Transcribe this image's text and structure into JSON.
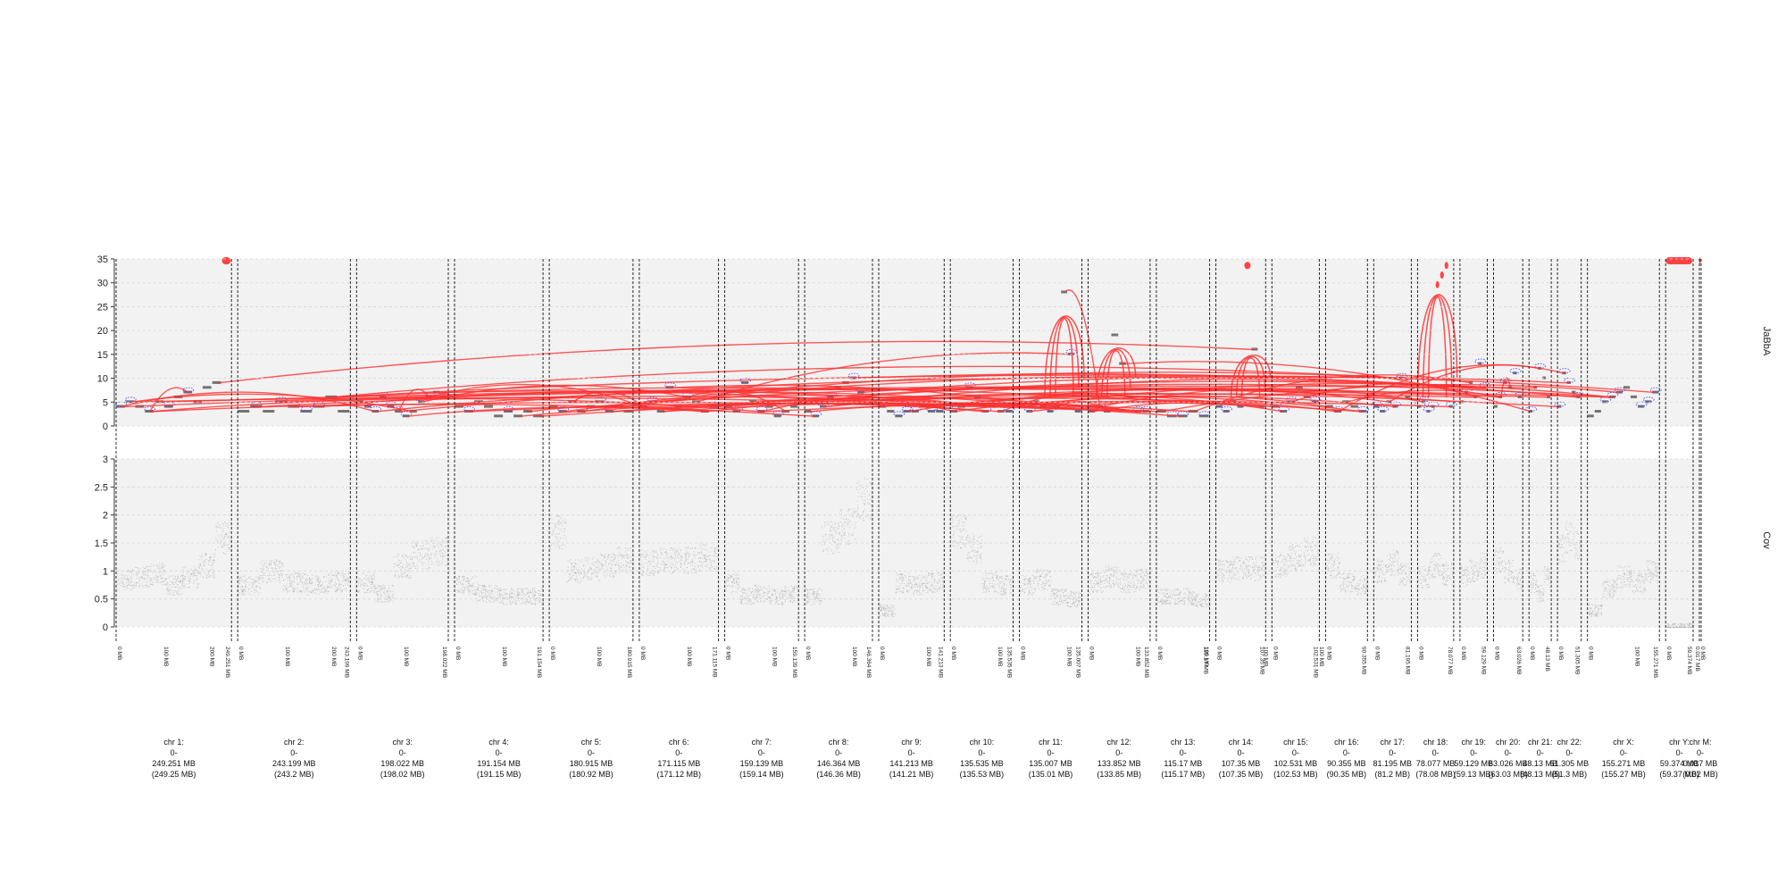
{
  "tracks": [
    {
      "name": "JaBbA",
      "ylim": [
        0,
        35
      ],
      "ticks": [
        "0",
        "5",
        "10",
        "15",
        "20",
        "25",
        "30",
        "35"
      ]
    },
    {
      "name": "Cov",
      "ylim": [
        0,
        3
      ],
      "ticks": [
        "0",
        "0.5",
        "1",
        "1.5",
        "2",
        "2.5",
        "3"
      ]
    }
  ],
  "colors": {
    "edge": "#ff3030",
    "loose": "#3a3aff",
    "segment": "#555555",
    "coverage": "#999999",
    "panel_bg": "#f2f2f2",
    "grid": "#d8d8d8"
  },
  "chart_data": {
    "type": "genome-track",
    "chromosomes": [
      {
        "name": "chr 1:",
        "range": "0-",
        "size": "249.251 MB",
        "size_rounded": "(249.25 MB)",
        "length_mb": 249.251,
        "start_tick": "0 MB",
        "mid_tick": "100 MB",
        "mid2_tick": "200 MB",
        "end_tick": "249.251 MB"
      },
      {
        "name": "chr 2:",
        "range": "0-",
        "size": "243.199 MB",
        "size_rounded": "(243.2 MB)",
        "length_mb": 243.199,
        "start_tick": "0 MB",
        "mid_tick": "100 MB",
        "mid2_tick": "200 MB",
        "end_tick": "243.199 MB"
      },
      {
        "name": "chr 3:",
        "range": "0-",
        "size": "198.022 MB",
        "size_rounded": "(198.02 MB)",
        "length_mb": 198.022,
        "start_tick": "0 MB",
        "mid_tick": "100 MB",
        "end_tick": "198.022 MB"
      },
      {
        "name": "chr 4:",
        "range": "0-",
        "size": "191.154 MB",
        "size_rounded": "(191.15 MB)",
        "length_mb": 191.154,
        "start_tick": "0 MB",
        "mid_tick": "100 MB",
        "end_tick": "191.154 MB"
      },
      {
        "name": "chr 5:",
        "range": "0-",
        "size": "180.915 MB",
        "size_rounded": "(180.92 MB)",
        "length_mb": 180.915,
        "start_tick": "0 MB",
        "mid_tick": "100 MB",
        "end_tick": "180.915 MB"
      },
      {
        "name": "chr 6:",
        "range": "0-",
        "size": "171.115 MB",
        "size_rounded": "(171.12 MB)",
        "length_mb": 171.115,
        "start_tick": "0 MB",
        "mid_tick": "100 MB",
        "end_tick": "171.115 MB"
      },
      {
        "name": "chr 7:",
        "range": "0-",
        "size": "159.139 MB",
        "size_rounded": "(159.14 MB)",
        "length_mb": 159.139,
        "start_tick": "0 MB",
        "mid_tick": "100 MB",
        "end_tick": "159.139 MB"
      },
      {
        "name": "chr 8:",
        "range": "0-",
        "size": "146.364 MB",
        "size_rounded": "(146.36 MB)",
        "length_mb": 146.364,
        "start_tick": "0 MB",
        "mid_tick": "100 MB",
        "end_tick": "146.364 MB"
      },
      {
        "name": "chr 9:",
        "range": "0-",
        "size": "141.213 MB",
        "size_rounded": "(141.21 MB)",
        "length_mb": 141.213,
        "start_tick": "0 MB",
        "mid_tick": "100 MB",
        "end_tick": "141.213 MB"
      },
      {
        "name": "chr 10:",
        "range": "0-",
        "size": "135.535 MB",
        "size_rounded": "(135.53 MB)",
        "length_mb": 135.535,
        "start_tick": "0 MB",
        "mid_tick": "100 MB",
        "end_tick": "135.535 MB"
      },
      {
        "name": "chr 11:",
        "range": "0-",
        "size": "135.007 MB",
        "size_rounded": "(135.01 MB)",
        "length_mb": 135.007,
        "start_tick": "0 MB",
        "mid_tick": "100 MB",
        "end_tick": "135.007 MB"
      },
      {
        "name": "chr 12:",
        "range": "0-",
        "size": "133.852 MB",
        "size_rounded": "(133.85 MB)",
        "length_mb": 133.852,
        "start_tick": "0 MB",
        "mid_tick": "100 MB",
        "end_tick": "133.852 MB"
      },
      {
        "name": "chr 13:",
        "range": "0-",
        "size": "115.17 MB",
        "size_rounded": "(115.17 MB)",
        "length_mb": 115.17,
        "start_tick": "0 MB",
        "mid_tick": "100 MB",
        "end_tick": "115.17 MB"
      },
      {
        "name": "chr 14:",
        "range": "0-",
        "size": "107.35 MB",
        "size_rounded": "(107.35 MB)",
        "length_mb": 107.35,
        "start_tick": "0 MB",
        "mid_tick": "100 MB",
        "end_tick": "107.35 MB"
      },
      {
        "name": "chr 15:",
        "range": "0-",
        "size": "102.531 MB",
        "size_rounded": "(102.53 MB)",
        "length_mb": 102.531,
        "start_tick": "0 MB",
        "mid_tick": "100 MB",
        "end_tick": "102.531 MB"
      },
      {
        "name": "chr 16:",
        "range": "0-",
        "size": "90.355 MB",
        "size_rounded": "(90.35 MB)",
        "length_mb": 90.355,
        "start_tick": "0 MB",
        "end_tick": "90.355 MB"
      },
      {
        "name": "chr 17:",
        "range": "0-",
        "size": "81.195 MB",
        "size_rounded": "(81.2 MB)",
        "length_mb": 81.195,
        "start_tick": "0 MB",
        "end_tick": "81.195 MB"
      },
      {
        "name": "chr 18:",
        "range": "0-",
        "size": "78.077 MB",
        "size_rounded": "(78.08 MB)",
        "length_mb": 78.077,
        "start_tick": "0 MB",
        "end_tick": "78.077 MB"
      },
      {
        "name": "chr 19:",
        "range": "0-",
        "size": "59.129 MB",
        "size_rounded": "(59.13 MB)",
        "length_mb": 59.129,
        "start_tick": "0 MB",
        "end_tick": "59.129 MB"
      },
      {
        "name": "chr 20:",
        "range": "0-",
        "size": "63.026 MB",
        "size_rounded": "(63.03 MB)",
        "length_mb": 63.026,
        "start_tick": "0 MB",
        "end_tick": "63.026 MB"
      },
      {
        "name": "chr 21:",
        "range": "0-",
        "size": "48.13 MB",
        "size_rounded": "(48.13 MB)",
        "length_mb": 48.13,
        "start_tick": "0 MB",
        "end_tick": "48.13 MB"
      },
      {
        "name": "chr 22:",
        "range": "0-",
        "size": "51.305 MB",
        "size_rounded": "(51.3 MB)",
        "length_mb": 51.305,
        "start_tick": "0 MB",
        "end_tick": "51.305 MB"
      },
      {
        "name": "chr X:",
        "range": "0-",
        "size": "155.271 MB",
        "size_rounded": "(155.27 MB)",
        "length_mb": 155.271,
        "start_tick": "0 MB",
        "mid_tick": "100 MB",
        "end_tick": "155.271 MB"
      },
      {
        "name": "chr Y:",
        "range": "0-",
        "size": "59.374 MB",
        "size_rounded": "(59.37 MB)",
        "length_mb": 59.374,
        "start_tick": "0 MB",
        "end_tick": "59.374 MB"
      },
      {
        "name": "chr M:",
        "range": "0-",
        "size": "0.017 MB",
        "size_rounded": "(0.02 MB)",
        "length_mb": 0.017,
        "start_tick": "0 MB",
        "end_tick": "0.017 MB"
      }
    ],
    "jabba_segments_cn": [
      [
        4,
        5,
        4,
        3,
        5,
        4,
        6,
        7,
        5,
        8,
        9,
        35
      ],
      [
        3,
        4,
        3,
        5,
        4,
        3,
        4,
        6,
        3
      ],
      [
        5,
        4,
        3,
        6,
        4,
        3,
        2,
        3,
        5,
        6,
        7,
        6
      ],
      [
        4,
        3,
        5,
        4,
        2,
        3,
        2,
        3,
        2
      ],
      [
        4,
        3,
        5,
        3,
        4,
        5,
        3,
        4,
        3
      ],
      [
        4,
        5,
        3,
        8,
        4,
        6,
        5,
        3,
        4
      ],
      [
        4,
        3,
        9,
        5,
        3,
        4,
        2,
        3,
        4
      ],
      [
        3,
        2,
        4,
        6,
        8,
        9,
        10,
        7,
        6
      ],
      [
        4,
        3,
        2,
        3,
        3,
        4,
        3,
        3
      ],
      [
        3,
        4,
        8,
        6,
        3,
        4,
        3,
        3
      ],
      [
        4,
        3,
        5,
        4,
        3,
        4,
        28,
        15,
        3
      ],
      [
        3,
        4,
        3,
        19,
        13,
        6,
        3,
        3
      ],
      [
        3,
        2,
        2,
        3,
        2
      ],
      [
        4,
        3,
        5,
        4,
        34,
        16,
        4
      ],
      [
        4,
        3,
        5,
        8,
        6,
        5
      ],
      [
        4,
        3,
        5,
        4,
        3
      ],
      [
        4,
        3,
        5,
        4,
        10,
        6
      ],
      [
        4,
        5,
        3,
        4,
        30,
        32,
        34,
        4
      ],
      [
        5,
        7,
        9,
        6,
        13,
        8
      ],
      [
        4,
        6,
        9,
        8,
        11,
        6
      ],
      [
        3,
        8,
        12,
        10,
        6
      ],
      [
        4,
        11,
        9,
        7,
        6
      ],
      [
        2,
        3,
        5,
        6,
        7,
        8,
        6,
        4,
        5,
        7
      ],
      [
        35
      ],
      [
        35
      ]
    ],
    "coverage_segments": [
      [
        0.85,
        0.9,
        0.95,
        0.75,
        0.9,
        1.1,
        1.6
      ],
      [
        0.75,
        1.0,
        0.8,
        0.75,
        0.8
      ],
      [
        0.8,
        0.6,
        1.1,
        1.3,
        1.35
      ],
      [
        0.75,
        0.6,
        0.55,
        0.55
      ],
      [
        1.7,
        1.0,
        1.05,
        1.1,
        1.2
      ],
      [
        1.15,
        1.2,
        1.2,
        1.25
      ],
      [
        0.8,
        0.55,
        0.6,
        0.55,
        0.6
      ],
      [
        0.55,
        1.6,
        1.8,
        2.3
      ],
      [
        0.3,
        0.8,
        0.75,
        0.8
      ],
      [
        1.7,
        1.4,
        0.8,
        0.75
      ],
      [
        0.75,
        0.85,
        0.55,
        0.5
      ],
      [
        0.8,
        0.9,
        0.8,
        0.85
      ],
      [
        0.55,
        0.55,
        0.5
      ],
      [
        1.0,
        1.05,
        1.05
      ],
      [
        1.1,
        1.25,
        1.35
      ],
      [
        1.1,
        0.8,
        0.75
      ],
      [
        1.0,
        1.15,
        0.95
      ],
      [
        0.9,
        1.1,
        0.95
      ],
      [
        0.9,
        1.0,
        1.1
      ],
      [
        1.2,
        1.0,
        0.85
      ],
      [
        0.8,
        0.6,
        0.9
      ],
      [
        1.4,
        1.6,
        1.5
      ],
      [
        0.3,
        0.7,
        0.9,
        0.8,
        1.0
      ],
      [
        0.0
      ],
      [
        0.0
      ]
    ]
  }
}
